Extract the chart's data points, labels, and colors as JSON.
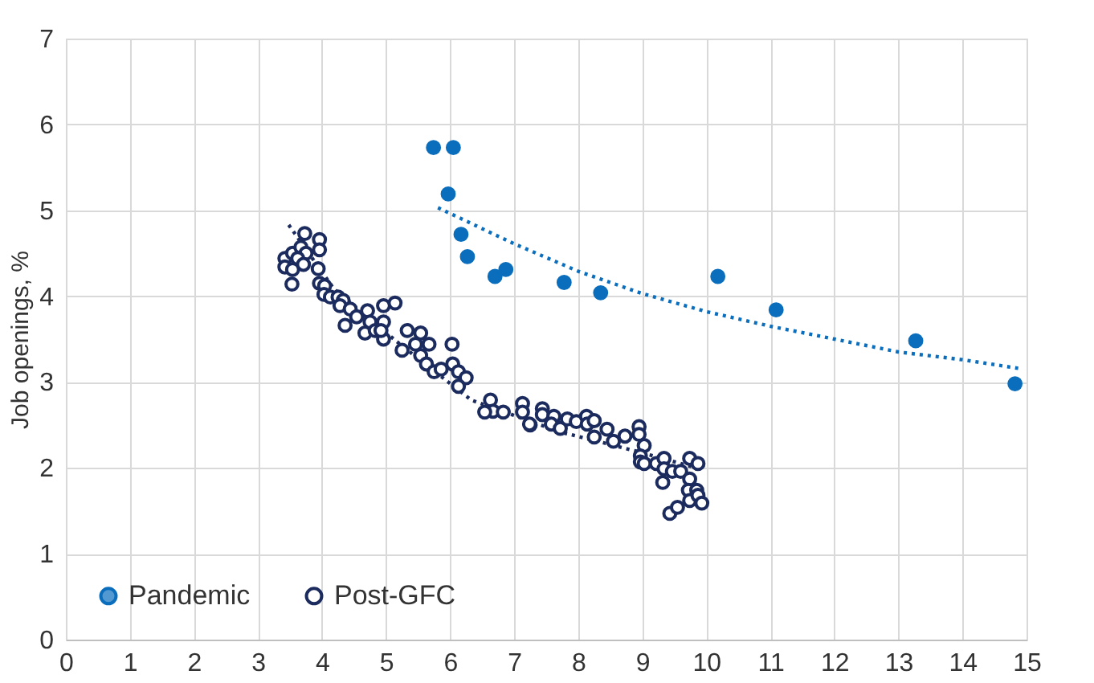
{
  "chart_data": {
    "type": "scatter",
    "ylabel": "Job openings, %",
    "xlim": [
      0,
      15
    ],
    "xticks": [
      0,
      1,
      2,
      3,
      4,
      5,
      6,
      7,
      8,
      9,
      10,
      11,
      12,
      13,
      14,
      15
    ],
    "ylim": [
      0,
      7
    ],
    "yticks": [
      0,
      1,
      2,
      3,
      4,
      5,
      6,
      7
    ],
    "grid": true,
    "legend": "bottom left",
    "series": [
      {
        "name": "Pandemic",
        "color": "#0a6ebd",
        "marker": "circle",
        "x": [
          5.74,
          6.05,
          5.97,
          6.17,
          6.27,
          6.7,
          6.87,
          7.78,
          8.35,
          10.18,
          11.09,
          13.27,
          14.82
        ],
        "values": [
          5.73,
          5.73,
          5.19,
          4.72,
          4.46,
          4.23,
          4.31,
          4.16,
          4.04,
          4.23,
          3.84,
          3.48,
          2.98
        ]
      },
      {
        "name": "Post-GFC",
        "color": "#1c2b5e",
        "marker": "circle",
        "x": [
          3.73,
          3.96,
          3.96,
          3.42,
          3.54,
          3.67,
          3.75,
          3.62,
          3.42,
          3.54,
          3.53,
          3.71,
          3.94,
          3.96,
          4.04,
          4.03,
          4.13,
          4.25,
          4.33,
          4.28,
          4.44,
          4.36,
          4.54,
          4.71,
          4.75,
          4.67,
          4.83,
          4.96,
          5.14,
          4.96,
          4.96,
          4.92,
          5.33,
          5.54,
          5.25,
          5.46,
          5.67,
          5.54,
          5.63,
          5.75,
          5.86,
          6.03,
          6.04,
          6.13,
          6.25,
          6.13,
          6.63,
          6.67,
          6.54,
          6.83,
          7.13,
          7.13,
          7.25,
          7.24,
          7.44,
          7.44,
          7.62,
          7.58,
          7.72,
          7.83,
          7.97,
          8.13,
          8.14,
          8.25,
          8.25,
          8.45,
          8.55,
          8.73,
          8.95,
          8.95,
          9.03,
          8.97,
          8.97,
          9.03,
          9.22,
          9.34,
          9.34,
          9.47,
          9.32,
          9.6,
          9.74,
          9.87,
          9.74,
          9.72,
          9.85,
          9.74,
          9.87,
          9.93,
          9.43,
          9.55
        ],
        "values": [
          4.73,
          4.66,
          4.54,
          4.44,
          4.5,
          4.57,
          4.5,
          4.44,
          4.34,
          4.31,
          4.14,
          4.37,
          4.32,
          4.15,
          4.12,
          4.02,
          3.99,
          3.99,
          3.95,
          3.89,
          3.85,
          3.66,
          3.76,
          3.83,
          3.7,
          3.57,
          3.6,
          3.89,
          3.92,
          3.7,
          3.5,
          3.6,
          3.6,
          3.57,
          3.37,
          3.44,
          3.44,
          3.31,
          3.21,
          3.12,
          3.15,
          3.44,
          3.21,
          3.12,
          3.05,
          2.95,
          2.79,
          2.66,
          2.65,
          2.65,
          2.75,
          2.65,
          2.5,
          2.51,
          2.69,
          2.62,
          2.6,
          2.51,
          2.46,
          2.57,
          2.54,
          2.6,
          2.51,
          2.55,
          2.36,
          2.45,
          2.31,
          2.37,
          2.48,
          2.39,
          2.26,
          2.14,
          2.07,
          2.05,
          2.05,
          2.11,
          1.99,
          1.96,
          1.83,
          1.96,
          2.11,
          2.05,
          1.87,
          1.74,
          1.74,
          1.62,
          1.68,
          1.59,
          1.47,
          1.54
        ]
      },
      {
        "type": "line",
        "color": "#0a6ebd",
        "marker": "none",
        "line_style": "dotted",
        "x": [
          5.81,
          7,
          8,
          9,
          10,
          11,
          12,
          13,
          14,
          14.87
        ],
        "values": [
          5.03,
          4.61,
          4.29,
          4.03,
          3.82,
          3.65,
          3.5,
          3.35,
          3.26,
          3.16
        ]
      },
      {
        "type": "line",
        "color": "#1c2b5e",
        "marker": "none",
        "line_style": "dotted",
        "x": [
          3.48,
          4.19,
          5.25,
          6.33,
          7.71,
          8.88,
          9.89
        ],
        "values": [
          4.83,
          4.08,
          3.42,
          2.79,
          2.42,
          2.2,
          1.99
        ]
      }
    ]
  }
}
